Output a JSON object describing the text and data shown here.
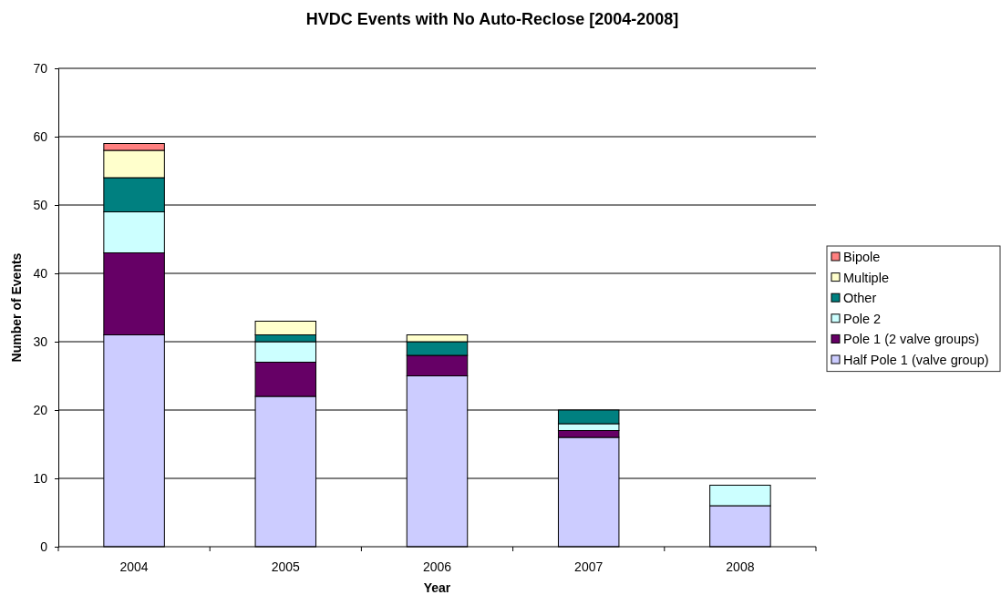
{
  "chart_data": {
    "type": "bar",
    "title": "HVDC Events with No Auto-Reclose [2004-2008]",
    "xlabel": "Year",
    "ylabel": "Number of Events",
    "categories": [
      "2004",
      "2005",
      "2006",
      "2007",
      "2008"
    ],
    "series": [
      {
        "name": "Half Pole 1 (valve group)",
        "color": "#ccccff",
        "values": [
          31,
          22,
          25,
          16,
          6
        ]
      },
      {
        "name": "Pole 1 (2 valve groups)",
        "color": "#660066",
        "values": [
          12,
          5,
          3,
          1,
          0
        ]
      },
      {
        "name": "Pole 2",
        "color": "#ccffff",
        "values": [
          6,
          3,
          0,
          1,
          3
        ]
      },
      {
        "name": "Other",
        "color": "#008080",
        "values": [
          5,
          1,
          2,
          2,
          0
        ]
      },
      {
        "name": "Multiple",
        "color": "#ffffcc",
        "values": [
          4,
          2,
          1,
          0,
          0
        ]
      },
      {
        "name": "Bipole",
        "color": "#ff8080",
        "values": [
          1,
          0,
          0,
          0,
          0
        ]
      }
    ],
    "stacked": true,
    "ylim": [
      0,
      70
    ],
    "yticks": [
      0,
      10,
      20,
      30,
      40,
      50,
      60,
      70
    ],
    "grid": "y",
    "legend": "right"
  }
}
